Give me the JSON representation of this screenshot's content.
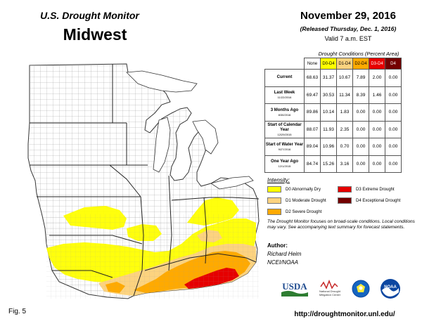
{
  "header": {
    "small_title": "U.S. Drought Monitor",
    "region": "Midwest",
    "date": "November 29, 2016",
    "released": "(Released Thursday, Dec. 1, 2016)",
    "valid": "Valid  7 a.m. EST"
  },
  "table": {
    "title": "Drought Conditions (Percent Area)",
    "columns": [
      "None",
      "D0-D4",
      "D1-D4",
      "D2-D4",
      "D3-D4",
      "D4"
    ],
    "rows": [
      {
        "label": "Current",
        "sub": "",
        "values": [
          "68.63",
          "31.37",
          "10.67",
          "7.89",
          "2.00",
          "0.00"
        ]
      },
      {
        "label": "Last Week",
        "sub": "11/22/2016",
        "values": [
          "69.47",
          "30.53",
          "11.34",
          "8.39",
          "1.46",
          "0.00"
        ]
      },
      {
        "label": "3 Months Ago",
        "sub": "8/30/2016",
        "values": [
          "89.86",
          "10.14",
          "1.83",
          "0.00",
          "0.00",
          "0.00"
        ]
      },
      {
        "label": "Start of Calendar Year",
        "sub": "12/29/2015",
        "values": [
          "88.07",
          "11.93",
          "2.35",
          "0.00",
          "0.00",
          "0.00"
        ]
      },
      {
        "label": "Start of Water Year",
        "sub": "9/27/2016",
        "values": [
          "89.04",
          "10.96",
          "0.70",
          "0.00",
          "0.00",
          "0.00"
        ]
      },
      {
        "label": "One Year Ago",
        "sub": "12/1/2015",
        "values": [
          "84.74",
          "15.26",
          "3.16",
          "0.00",
          "0.00",
          "0.00"
        ]
      }
    ]
  },
  "legend": {
    "heading": "Intensity:",
    "items": [
      {
        "label": "D0 Abnormally Dry",
        "color": "#ffff00"
      },
      {
        "label": "D1 Moderate Drought",
        "color": "#fcd37f"
      },
      {
        "label": "D2 Severe Drought",
        "color": "#ffaa00"
      },
      {
        "label": "D3 Extreme Drought",
        "color": "#e60000"
      },
      {
        "label": "D4 Exceptional Drought",
        "color": "#730000"
      }
    ]
  },
  "note": "The Drought Monitor focuses on broad-scale conditions. Local conditions may vary. See accompanying text summary for forecast statements.",
  "author": {
    "heading": "Author:",
    "name": "Richard Heim",
    "org": "NCEI/NOAA"
  },
  "logos": {
    "usda": "USDA",
    "ndmc": "National Drought Mitigation Center",
    "doc_icon": "commerce-seal-icon",
    "noaa": "NOAA"
  },
  "footer": {
    "fig": "Fig. 5",
    "url": "http://droughtmonitor.unl.edu/"
  }
}
